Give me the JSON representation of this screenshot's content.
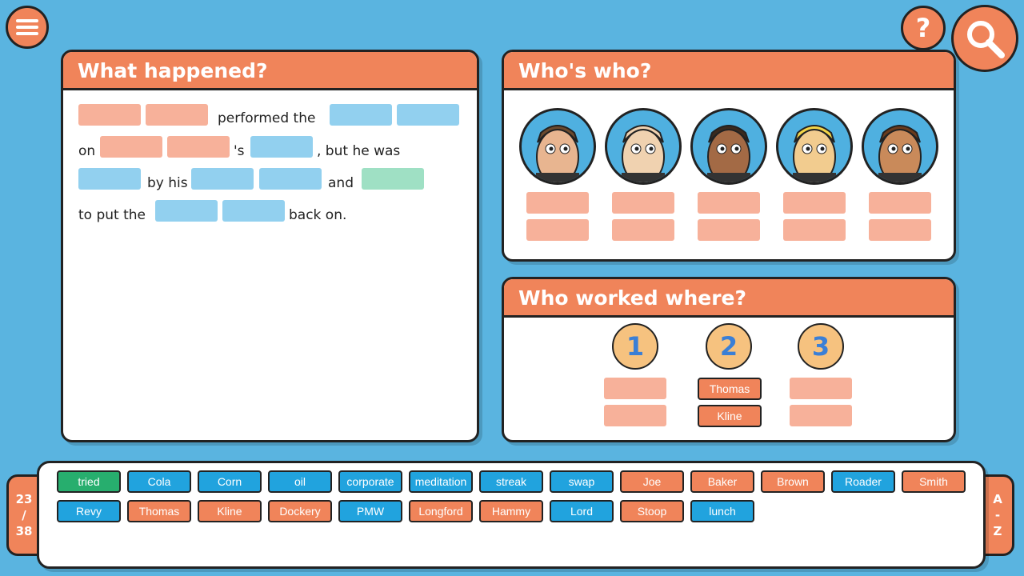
{
  "colors": {
    "background": "#5ab4e0",
    "accent": "#f0845a",
    "blank_name": "#f7b19a",
    "blank_word": "#92d0ef",
    "blank_verb": "#9fe0c4",
    "chip_blue": "#21a3de",
    "chip_orange": "#f0845a",
    "chip_green": "#27ae6e"
  },
  "icons": {
    "menu": "hamburger-icon",
    "help": "question-icon",
    "search": "magnifier-icon"
  },
  "help_label": "?",
  "what_happened": {
    "title": "What happened?",
    "t1": "performed the",
    "t2": "on",
    "t3": "'s",
    "t4": ", but he was",
    "t5": "by his",
    "t6": "and",
    "t7": "to put the",
    "t8": "back on."
  },
  "whos_who": {
    "title": "Who's who?"
  },
  "who_worked_where": {
    "title": "Who worked where?",
    "columns": [
      {
        "number": "1",
        "names": [
          "",
          ""
        ]
      },
      {
        "number": "2",
        "names": [
          "Thomas",
          "Kline"
        ]
      },
      {
        "number": "3",
        "names": [
          "",
          ""
        ]
      }
    ]
  },
  "word_bank": {
    "counter": {
      "found": "23",
      "sep": "/",
      "total": "38"
    },
    "sort": {
      "a": "A",
      "sep": "-",
      "z": "Z"
    },
    "words": [
      {
        "text": "tried",
        "type": "green"
      },
      {
        "text": "Cola",
        "type": "blue"
      },
      {
        "text": "Corn",
        "type": "blue"
      },
      {
        "text": "oil",
        "type": "blue"
      },
      {
        "text": "corporate",
        "type": "blue"
      },
      {
        "text": "meditation",
        "type": "blue"
      },
      {
        "text": "streak",
        "type": "blue"
      },
      {
        "text": "swap",
        "type": "blue"
      },
      {
        "text": "Joe",
        "type": "orange"
      },
      {
        "text": "Baker",
        "type": "orange"
      },
      {
        "text": "Brown",
        "type": "orange"
      },
      {
        "text": "Roader",
        "type": "blue"
      },
      {
        "text": "Smith",
        "type": "orange"
      },
      {
        "text": "Revy",
        "type": "blue"
      },
      {
        "text": "Thomas",
        "type": "orange"
      },
      {
        "text": "Kline",
        "type": "orange"
      },
      {
        "text": "Dockery",
        "type": "orange"
      },
      {
        "text": "PMW",
        "type": "blue"
      },
      {
        "text": "Longford",
        "type": "orange"
      },
      {
        "text": "Hammy",
        "type": "orange"
      },
      {
        "text": "Lord",
        "type": "blue"
      },
      {
        "text": "Stoop",
        "type": "orange"
      },
      {
        "text": "lunch",
        "type": "blue"
      }
    ]
  }
}
